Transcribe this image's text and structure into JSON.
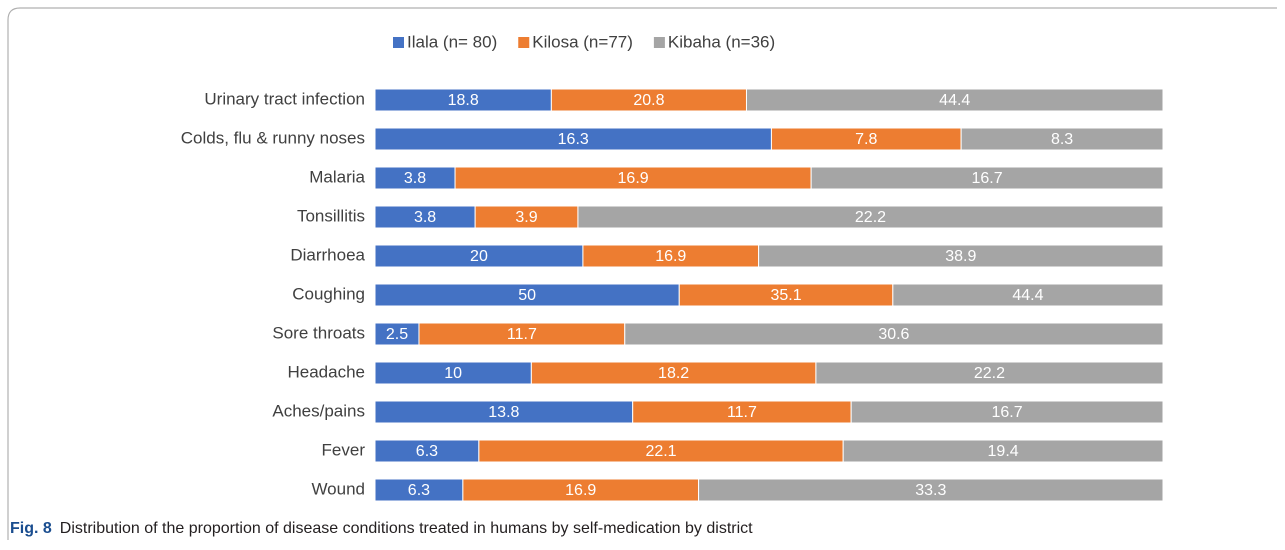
{
  "chart_data": {
    "type": "bar",
    "orientation": "horizontal",
    "stack": "percent",
    "categories": [
      "Urinary tract infection",
      "Colds, flu & runny noses",
      "Malaria",
      "Tonsillitis",
      "Diarrhoea",
      "Coughing",
      "Sore throats",
      "Headache",
      "Aches/pains",
      "Fever",
      "Wound"
    ],
    "series": [
      {
        "name": "Ilala (n= 80)",
        "color": "#4472c4",
        "values": [
          18.8,
          16.3,
          3.8,
          3.8,
          20,
          50,
          2.5,
          10,
          13.8,
          6.3,
          6.3
        ]
      },
      {
        "name": "Kilosa (n=77)",
        "color": "#ed7d31",
        "values": [
          20.8,
          7.8,
          16.9,
          3.9,
          16.9,
          35.1,
          11.7,
          18.2,
          11.7,
          22.1,
          16.9
        ]
      },
      {
        "name": "Kibaha (n=36)",
        "color": "#a5a5a5",
        "values": [
          44.4,
          8.3,
          16.7,
          22.2,
          38.9,
          44.4,
          30.6,
          22.2,
          16.7,
          19.4,
          33.3
        ]
      }
    ],
    "legend": "top"
  },
  "caption_label": "Fig. 8",
  "caption": "Distribution of the proportion of disease conditions treated in humans by self-medication by district"
}
